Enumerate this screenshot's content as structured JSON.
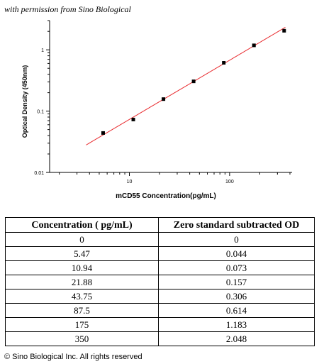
{
  "header_note": "with permission from Sino Biological",
  "footer_note": "© Sino Biological Inc. All rights reserved",
  "chart_data": {
    "type": "scatter",
    "title": "",
    "xlabel": "mCD55  Concentration(pg/mL)",
    "ylabel": "Optical Density (450nm)",
    "x_scale": "log",
    "y_scale": "log",
    "xlim": [
      1.6,
      420
    ],
    "ylim": [
      0.01,
      3
    ],
    "x_ticks": [
      10,
      100
    ],
    "x_tick_labels": [
      "10",
      "100"
    ],
    "y_ticks": [
      0.01,
      0.1,
      1
    ],
    "y_tick_labels": [
      "0.01",
      "0.1",
      "1"
    ],
    "grid": false,
    "legend": "none",
    "colors": {
      "points": "#000000",
      "fit_line": "#e8262a"
    },
    "points": [
      {
        "x": 5.47,
        "y": 0.044
      },
      {
        "x": 10.94,
        "y": 0.073
      },
      {
        "x": 21.88,
        "y": 0.157
      },
      {
        "x": 43.75,
        "y": 0.306
      },
      {
        "x": 87.5,
        "y": 0.614
      },
      {
        "x": 175,
        "y": 1.183
      },
      {
        "x": 350,
        "y": 2.048
      }
    ],
    "fit_line": {
      "x": [
        3.7,
        360
      ],
      "y": [
        0.028,
        2.33
      ]
    }
  },
  "table": {
    "headers": [
      "Concentration ( pg/mL)",
      "Zero standard subtracted OD"
    ],
    "rows": [
      [
        "0",
        "0"
      ],
      [
        "5.47",
        "0.044"
      ],
      [
        "10.94",
        "0.073"
      ],
      [
        "21.88",
        "0.157"
      ],
      [
        "43.75",
        "0.306"
      ],
      [
        "87.5",
        "0.614"
      ],
      [
        "175",
        "1.183"
      ],
      [
        "350",
        "2.048"
      ]
    ]
  }
}
